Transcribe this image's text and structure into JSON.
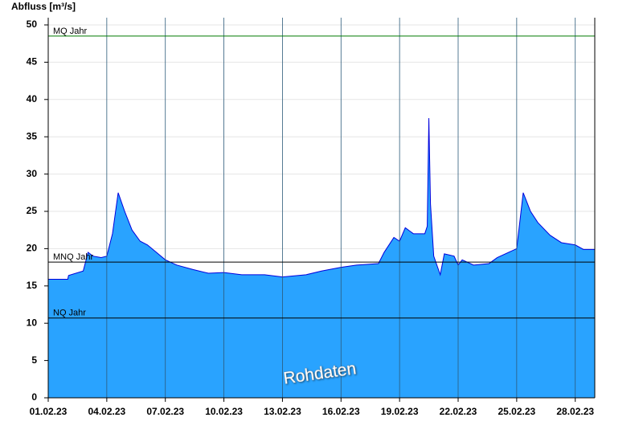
{
  "chart_data": {
    "type": "area",
    "y_label": "Abfluss [m³/s]",
    "watermark": "Rohdaten",
    "color": "#29a3ff",
    "line_color": "#0000dd",
    "grid": true,
    "x": [
      "2023-02-01T00:00",
      "2023-02-02T00:00",
      "2023-02-02T01:00",
      "2023-02-02T19:00",
      "2023-02-03T01:00",
      "2023-02-03T07:00",
      "2023-02-03T17:00",
      "2023-02-04T00:00",
      "2023-02-04T07:00",
      "2023-02-04T14:00",
      "2023-02-04T22:00",
      "2023-02-05T07:00",
      "2023-02-05T17:00",
      "2023-02-06T02:00",
      "2023-02-06T13:00",
      "2023-02-07T00:00",
      "2023-02-07T14:00",
      "2023-02-08T10:00",
      "2023-02-09T05:00",
      "2023-02-10T00:00",
      "2023-02-10T22:00",
      "2023-02-12T02:00",
      "2023-02-13T00:00",
      "2023-02-14T05:00",
      "2023-02-15T00:00",
      "2023-02-16T00:00",
      "2023-02-16T19:00",
      "2023-02-17T22:00",
      "2023-02-18T05:00",
      "2023-02-18T17:00",
      "2023-02-19T00:00",
      "2023-02-19T07:00",
      "2023-02-19T17:00",
      "2023-02-20T07:00",
      "2023-02-20T10:00",
      "2023-02-20T12:00",
      "2023-02-20T14:00",
      "2023-02-20T18:00",
      "2023-02-21T02:00",
      "2023-02-21T07:00",
      "2023-02-21T19:00",
      "2023-02-22T00:00",
      "2023-02-22T05:00",
      "2023-02-22T19:00",
      "2023-02-23T14:00",
      "2023-02-24T00:00",
      "2023-02-25T00:00",
      "2023-02-25T08:00",
      "2023-02-25T17:00",
      "2023-02-26T02:00",
      "2023-02-26T17:00",
      "2023-02-27T07:00",
      "2023-02-28T00:00",
      "2023-02-28T10:00",
      "2023-03-01T00:00"
    ],
    "values": [
      15.9,
      15.9,
      16.4,
      17,
      19.5,
      19,
      18.8,
      19,
      22,
      27.5,
      25,
      22.5,
      21,
      20.5,
      19.5,
      18.5,
      17.8,
      17.2,
      16.7,
      16.8,
      16.5,
      16.5,
      16.2,
      16.5,
      17,
      17.5,
      17.8,
      18,
      19.5,
      21.5,
      21,
      22.8,
      22,
      22,
      23,
      37.5,
      26,
      19,
      16.5,
      19.3,
      19,
      17.8,
      18.5,
      17.8,
      18,
      18.8,
      20,
      27.5,
      25,
      23.5,
      21.8,
      20.8,
      20.5,
      19.9,
      19.9
    ],
    "xlim": [
      "2023-02-01T00:00",
      "2023-03-01T00:00"
    ],
    "xticks": [
      {
        "value": "2023-02-01T00:00",
        "label": "01.02.23"
      },
      {
        "value": "2023-02-04T00:00",
        "label": "04.02.23"
      },
      {
        "value": "2023-02-07T00:00",
        "label": "07.02.23"
      },
      {
        "value": "2023-02-10T00:00",
        "label": "10.02.23"
      },
      {
        "value": "2023-02-13T00:00",
        "label": "13.02.23"
      },
      {
        "value": "2023-02-16T00:00",
        "label": "16.02.23"
      },
      {
        "value": "2023-02-19T00:00",
        "label": "19.02.23"
      },
      {
        "value": "2023-02-22T00:00",
        "label": "22.02.23"
      },
      {
        "value": "2023-02-25T00:00",
        "label": "25.02.23"
      },
      {
        "value": "2023-02-28T00:00",
        "label": "28.02.23"
      }
    ],
    "ylim": [
      0,
      50
    ],
    "yticks": [
      0,
      5,
      10,
      15,
      20,
      25,
      30,
      35,
      40,
      45,
      50
    ],
    "reference_lines": [
      {
        "label": "MQ Jahr",
        "value": 48.5,
        "color": "#007a00"
      },
      {
        "label": "MNQ Jahr",
        "value": 18.2,
        "color": "#000000"
      },
      {
        "label": "NQ Jahr",
        "value": 10.7,
        "color": "#000000"
      }
    ]
  }
}
